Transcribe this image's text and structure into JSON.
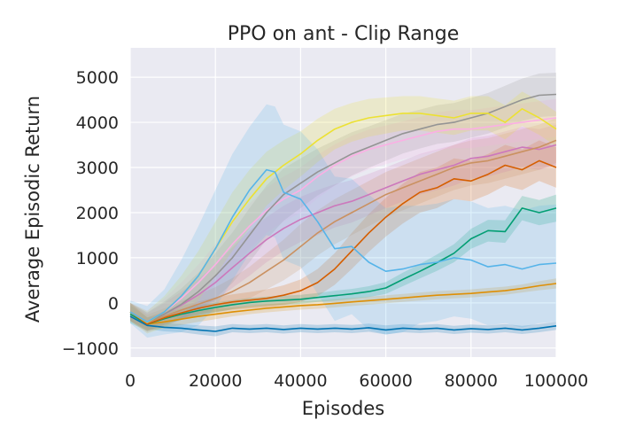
{
  "chart_data": {
    "type": "line",
    "title": "PPO on ant - Clip Range",
    "xlabel": "Episodes",
    "ylabel": "Average Episodic Return",
    "xlim": [
      0,
      100000
    ],
    "ylim": [
      -1200,
      5650
    ],
    "xticks": [
      0,
      20000,
      40000,
      60000,
      80000,
      100000
    ],
    "xtick_labels": [
      "0",
      "20000",
      "40000",
      "60000",
      "80000",
      "100000"
    ],
    "yticks": [
      -1000,
      0,
      1000,
      2000,
      3000,
      4000,
      5000
    ],
    "ytick_labels": [
      "−1000",
      "0",
      "1000",
      "2000",
      "3000",
      "4000",
      "5000"
    ],
    "grid": true,
    "background": "#eaeaf2",
    "legend": "none",
    "series": [
      {
        "name": "series-dark-blue",
        "color": "#0173b2",
        "x": [
          0,
          4000,
          8000,
          12000,
          16000,
          20000,
          24000,
          28000,
          32000,
          36000,
          40000,
          44000,
          48000,
          52000,
          56000,
          60000,
          64000,
          68000,
          72000,
          76000,
          80000,
          84000,
          88000,
          92000,
          96000,
          100000
        ],
        "y": [
          -300,
          -500,
          -540,
          -560,
          -600,
          -630,
          -560,
          -580,
          -560,
          -590,
          -560,
          -580,
          -560,
          -580,
          -550,
          -600,
          -560,
          -580,
          -560,
          -600,
          -570,
          -590,
          -560,
          -600,
          -560,
          -510
        ],
        "band": [
          100,
          80,
          90,
          90,
          100,
          110,
          90,
          90,
          90,
          90,
          90,
          90,
          90,
          90,
          90,
          100,
          90,
          90,
          90,
          90,
          90,
          90,
          90,
          90,
          90,
          90
        ]
      },
      {
        "name": "series-orange",
        "color": "#de8f05",
        "x": [
          0,
          4000,
          8000,
          12000,
          16000,
          20000,
          24000,
          28000,
          32000,
          36000,
          40000,
          44000,
          48000,
          52000,
          56000,
          60000,
          64000,
          68000,
          72000,
          76000,
          80000,
          84000,
          88000,
          92000,
          96000,
          100000
        ],
        "y": [
          -200,
          -470,
          -420,
          -360,
          -300,
          -250,
          -200,
          -160,
          -120,
          -90,
          -60,
          -40,
          -10,
          20,
          50,
          80,
          110,
          140,
          170,
          190,
          210,
          240,
          270,
          320,
          380,
          430
        ],
        "band": [
          200,
          150,
          140,
          130,
          120,
          110,
          100,
          90,
          90,
          90,
          90,
          90,
          90,
          90,
          90,
          90,
          90,
          90,
          90,
          90,
          90,
          90,
          90,
          90,
          100,
          110
        ]
      },
      {
        "name": "series-green",
        "color": "#029e73",
        "x": [
          0,
          4000,
          8000,
          12000,
          16000,
          20000,
          24000,
          28000,
          32000,
          36000,
          40000,
          44000,
          48000,
          52000,
          56000,
          60000,
          64000,
          68000,
          72000,
          76000,
          80000,
          84000,
          88000,
          92000,
          96000,
          100000
        ],
        "y": [
          -250,
          -470,
          -350,
          -250,
          -170,
          -100,
          -40,
          10,
          40,
          60,
          80,
          120,
          160,
          200,
          250,
          330,
          520,
          700,
          890,
          1100,
          1420,
          1600,
          1580,
          2100,
          2000,
          2100
        ],
        "band": [
          200,
          150,
          140,
          120,
          110,
          110,
          100,
          100,
          100,
          100,
          100,
          100,
          110,
          110,
          120,
          130,
          150,
          160,
          180,
          200,
          220,
          240,
          250,
          270,
          280,
          300
        ]
      },
      {
        "name": "series-dark-orange",
        "color": "#d55e00",
        "x": [
          0,
          4000,
          8000,
          12000,
          16000,
          20000,
          24000,
          28000,
          32000,
          36000,
          40000,
          44000,
          48000,
          52000,
          56000,
          60000,
          64000,
          68000,
          72000,
          76000,
          80000,
          84000,
          88000,
          92000,
          96000,
          100000
        ],
        "y": [
          -200,
          -470,
          -330,
          -220,
          -120,
          -40,
          20,
          60,
          100,
          170,
          270,
          450,
          750,
          1150,
          1550,
          1900,
          2200,
          2450,
          2550,
          2750,
          2700,
          2850,
          3050,
          2950,
          3150,
          3000
        ],
        "band": [
          200,
          150,
          150,
          150,
          150,
          160,
          170,
          180,
          200,
          220,
          250,
          300,
          350,
          400,
          420,
          430,
          440,
          450,
          450,
          450,
          450,
          450,
          450,
          450,
          450,
          450
        ]
      },
      {
        "name": "series-pink-violet",
        "color": "#cc78bc",
        "x": [
          0,
          4000,
          8000,
          12000,
          16000,
          20000,
          24000,
          28000,
          32000,
          36000,
          40000,
          44000,
          48000,
          52000,
          56000,
          60000,
          64000,
          68000,
          72000,
          76000,
          80000,
          84000,
          88000,
          92000,
          96000,
          100000
        ],
        "y": [
          -200,
          -420,
          -250,
          -50,
          180,
          450,
          780,
          1100,
          1400,
          1650,
          1850,
          2000,
          2150,
          2250,
          2400,
          2550,
          2700,
          2850,
          2950,
          3050,
          3200,
          3250,
          3350,
          3450,
          3400,
          3500
        ],
        "band": [
          200,
          200,
          250,
          300,
          350,
          400,
          450,
          500,
          500,
          500,
          500,
          500,
          480,
          470,
          460,
          450,
          450,
          450,
          450,
          450,
          450,
          450,
          450,
          450,
          450,
          450
        ]
      },
      {
        "name": "series-tan",
        "color": "#ca9161",
        "x": [
          0,
          4000,
          8000,
          12000,
          16000,
          20000,
          24000,
          28000,
          32000,
          36000,
          40000,
          44000,
          48000,
          52000,
          56000,
          60000,
          64000,
          68000,
          72000,
          76000,
          80000,
          84000,
          88000,
          92000,
          96000,
          100000
        ],
        "y": [
          -200,
          -440,
          -300,
          -160,
          -30,
          100,
          250,
          450,
          700,
          950,
          1250,
          1550,
          1800,
          2000,
          2200,
          2400,
          2550,
          2700,
          2850,
          3000,
          3100,
          3150,
          3250,
          3350,
          3450,
          3600
        ],
        "band": [
          200,
          180,
          180,
          200,
          220,
          250,
          300,
          350,
          400,
          450,
          500,
          500,
          500,
          500,
          500,
          500,
          500,
          500,
          500,
          500,
          500,
          500,
          500,
          500,
          500,
          500
        ]
      },
      {
        "name": "series-pink",
        "color": "#fbafe4",
        "x": [
          0,
          4000,
          8000,
          12000,
          16000,
          20000,
          24000,
          28000,
          32000,
          36000,
          40000,
          44000,
          48000,
          52000,
          56000,
          60000,
          64000,
          68000,
          72000,
          76000,
          80000,
          84000,
          88000,
          92000,
          96000,
          100000
        ],
        "y": [
          -200,
          -420,
          -200,
          100,
          450,
          850,
          1300,
          1700,
          2050,
          2300,
          2500,
          2800,
          3050,
          3250,
          3400,
          3500,
          3600,
          3700,
          3800,
          3850,
          3850,
          3900,
          3950,
          4000,
          4050,
          4100
        ],
        "band": [
          200,
          250,
          300,
          350,
          400,
          450,
          500,
          500,
          500,
          500,
          500,
          480,
          460,
          450,
          440,
          430,
          420,
          420,
          420,
          420,
          420,
          420,
          420,
          420,
          420,
          420
        ]
      },
      {
        "name": "series-gray",
        "color": "#949494",
        "x": [
          0,
          4000,
          8000,
          12000,
          16000,
          20000,
          24000,
          28000,
          32000,
          36000,
          40000,
          44000,
          48000,
          52000,
          56000,
          60000,
          64000,
          68000,
          72000,
          76000,
          80000,
          84000,
          88000,
          92000,
          96000,
          100000
        ],
        "y": [
          -200,
          -430,
          -250,
          -30,
          250,
          600,
          1000,
          1500,
          2000,
          2400,
          2650,
          2900,
          3100,
          3300,
          3450,
          3600,
          3750,
          3850,
          3950,
          4000,
          4100,
          4200,
          4350,
          4500,
          4600,
          4620
        ],
        "band": [
          200,
          220,
          280,
          350,
          420,
          500,
          560,
          600,
          600,
          580,
          550,
          520,
          500,
          480,
          460,
          450,
          440,
          430,
          430,
          430,
          440,
          450,
          460,
          470,
          480,
          480
        ]
      },
      {
        "name": "series-yellow",
        "color": "#ece133",
        "x": [
          0,
          4000,
          8000,
          12000,
          16000,
          20000,
          24000,
          28000,
          32000,
          36000,
          40000,
          44000,
          48000,
          52000,
          56000,
          60000,
          64000,
          68000,
          72000,
          76000,
          80000,
          84000,
          88000,
          92000,
          96000,
          100000
        ],
        "y": [
          -200,
          -430,
          -200,
          150,
          600,
          1200,
          1800,
          2300,
          2750,
          3050,
          3300,
          3600,
          3850,
          4000,
          4100,
          4150,
          4200,
          4200,
          4150,
          4100,
          4200,
          4200,
          4000,
          4300,
          4100,
          3850
        ],
        "band": [
          200,
          250,
          350,
          450,
          550,
          600,
          650,
          650,
          600,
          550,
          500,
          480,
          450,
          430,
          420,
          400,
          380,
          380,
          380,
          380,
          380,
          380,
          380,
          380,
          380,
          380
        ]
      },
      {
        "name": "series-sky-blue",
        "color": "#56b4e9",
        "x": [
          0,
          4000,
          8000,
          12000,
          16000,
          20000,
          24000,
          28000,
          32000,
          34000,
          36000,
          40000,
          44000,
          48000,
          52000,
          56000,
          60000,
          64000,
          68000,
          72000,
          76000,
          80000,
          84000,
          88000,
          92000,
          96000,
          100000
        ],
        "y": [
          -200,
          -420,
          -200,
          150,
          600,
          1200,
          1900,
          2500,
          2950,
          2900,
          2450,
          2300,
          1800,
          1200,
          1250,
          900,
          700,
          750,
          850,
          900,
          1000,
          950,
          800,
          850,
          750,
          850,
          880
        ],
        "band": [
          250,
          350,
          500,
          800,
          1100,
          1300,
          1400,
          1400,
          1450,
          1450,
          1500,
          1500,
          1600,
          1600,
          1500,
          1500,
          1400,
          1400,
          1300,
          1300,
          1300,
          1300,
          1300,
          1300,
          1300,
          1300,
          1300
        ]
      }
    ]
  }
}
